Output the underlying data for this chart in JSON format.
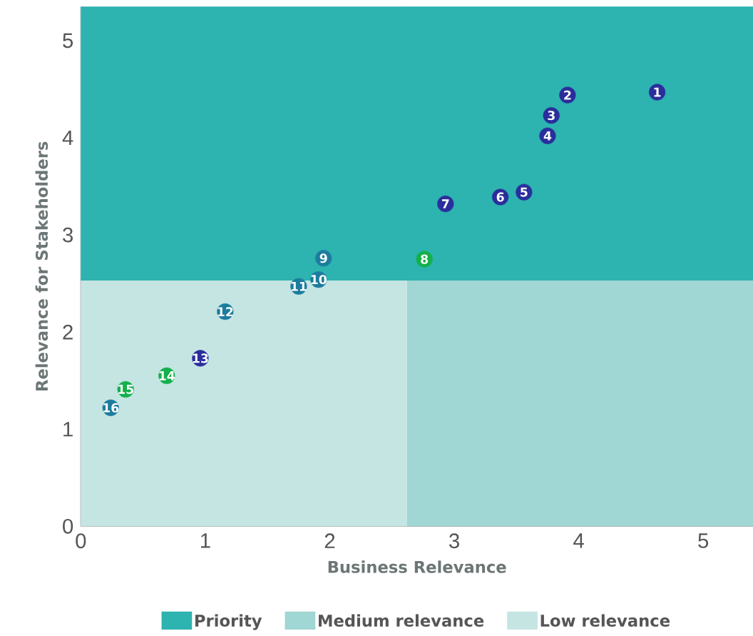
{
  "chart_data": {
    "type": "scatter",
    "xlabel": "Business Relevance",
    "ylabel": "Relevance for Stakeholders",
    "xlim": [
      0,
      5.4
    ],
    "ylim": [
      0,
      5.35
    ],
    "xticks": [
      0,
      1,
      2,
      3,
      4,
      5
    ],
    "yticks": [
      0,
      1,
      2,
      3,
      4,
      5
    ],
    "legend": "bottom",
    "bands": [
      {
        "axis": "y",
        "from": 2.53,
        "to": 5.35,
        "label": "Priority",
        "color": "#2db3b0"
      },
      {
        "axis": "x",
        "from": 2.62,
        "to": 5.4,
        "label": "Medium relevance",
        "color": "#a0d6d3"
      },
      {
        "axis": "x",
        "from": 0,
        "to": 2.62,
        "label": "Low relevance",
        "color": "#c5e5e3"
      }
    ],
    "series": [
      {
        "x": [
          4.63,
          3.91,
          3.78,
          3.75,
          3.56,
          3.37,
          2.93,
          2.76,
          1.95,
          1.91,
          1.75,
          1.16,
          0.96,
          0.69,
          0.36,
          0.24
        ],
        "values": [
          4.47,
          4.44,
          4.23,
          4.02,
          3.44,
          3.39,
          3.32,
          2.75,
          2.76,
          2.54,
          2.47,
          2.21,
          1.73,
          1.55,
          1.41,
          1.22
        ],
        "colors": [
          "#2a2e9c",
          "#2a2e9c",
          "#2a2e9c",
          "#2a2e9c",
          "#2a2e9c",
          "#2a2e9c",
          "#2a2e9c",
          "#14b04c",
          "#1c7c9e",
          "#1c7c9e",
          "#1c7c9e",
          "#1c7c9e",
          "#2a2e9c",
          "#14b04c",
          "#14b04c",
          "#1c7c9e"
        ]
      }
    ],
    "annotations": [
      {
        "text": "1",
        "x": 4.63,
        "y": 4.47
      },
      {
        "text": "2",
        "x": 3.91,
        "y": 4.44
      },
      {
        "text": "3",
        "x": 3.78,
        "y": 4.23
      },
      {
        "text": "4",
        "x": 3.75,
        "y": 4.02
      },
      {
        "text": "5",
        "x": 3.56,
        "y": 3.44
      },
      {
        "text": "6",
        "x": 3.37,
        "y": 3.39
      },
      {
        "text": "7",
        "x": 2.93,
        "y": 3.32
      },
      {
        "text": "8",
        "x": 2.76,
        "y": 2.75
      },
      {
        "text": "9",
        "x": 1.95,
        "y": 2.76
      },
      {
        "text": "10",
        "x": 1.91,
        "y": 2.54
      },
      {
        "text": "11",
        "x": 1.75,
        "y": 2.47
      },
      {
        "text": "12",
        "x": 1.16,
        "y": 2.21
      },
      {
        "text": "13",
        "x": 0.96,
        "y": 1.73
      },
      {
        "text": "14",
        "x": 0.69,
        "y": 1.55
      },
      {
        "text": "15",
        "x": 0.36,
        "y": 1.41
      },
      {
        "text": "16",
        "x": 0.24,
        "y": 1.22
      }
    ]
  }
}
